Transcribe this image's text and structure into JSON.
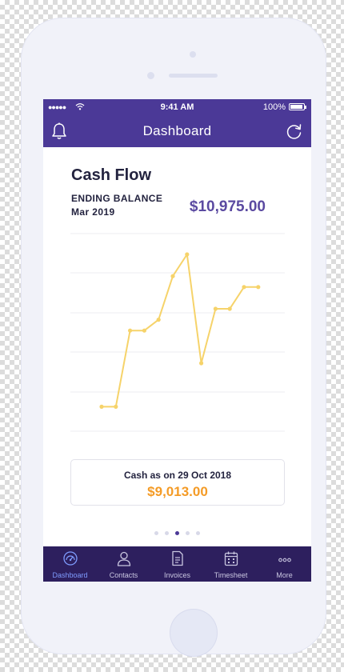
{
  "status_bar": {
    "signal": "●●●●●",
    "time": "9:41 AM",
    "battery": "100%"
  },
  "nav": {
    "title": "Dashboard"
  },
  "card": {
    "title": "Cash Flow",
    "balance_label_line1": "ENDING BALANCE",
    "balance_label_line2": "Mar 2019",
    "balance_value": "$10,975.00"
  },
  "chart_data": {
    "type": "line",
    "series": [
      {
        "values": [
          1,
          1,
          8,
          8,
          9,
          13,
          15,
          5,
          10,
          10,
          12,
          12
        ]
      }
    ],
    "ylim": [
      0,
      15
    ],
    "grid": true,
    "line_color": "#f6d36a"
  },
  "cash_box": {
    "label": "Cash as on  29 Oct 2018",
    "value": "$9,013.00"
  },
  "pager": {
    "count": 5,
    "active": 2
  },
  "tabs": [
    {
      "label": "Dashboard",
      "icon": "gauge-icon",
      "active": true
    },
    {
      "label": "Contacts",
      "icon": "person-icon",
      "active": false
    },
    {
      "label": "Invoices",
      "icon": "document-icon",
      "active": false
    },
    {
      "label": "Timesheet",
      "icon": "calendar-icon",
      "active": false
    },
    {
      "label": "More",
      "icon": "more-icon",
      "active": false
    }
  ],
  "colors": {
    "brand": "#4b3997",
    "tab_bar": "#2d1f5e",
    "balance": "#5b4aa1",
    "cash": "#f49b26",
    "line": "#f6d36a"
  }
}
